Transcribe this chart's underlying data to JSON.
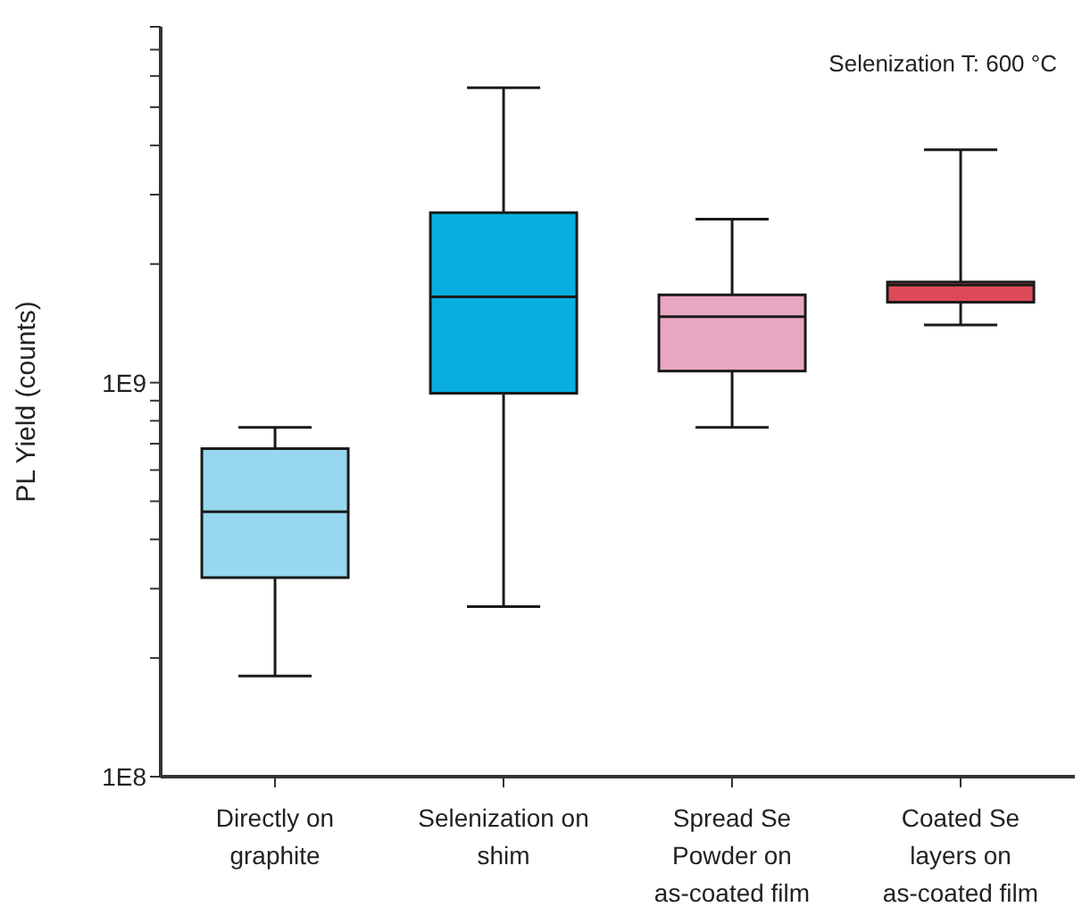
{
  "chart_data": {
    "type": "box",
    "ylabel": "PL Yield (counts)",
    "annotations": [
      "Selenization T: 600 °C"
    ],
    "categories": [
      "Directly on graphite",
      "Selenization on shim",
      "Spread Se Powder on as-coated film",
      "Coated Se layers on as-coated film"
    ],
    "colors": [
      "#97d7f0",
      "#08aee0",
      "#e9a6c2",
      "#dc4a58"
    ],
    "boxes": [
      {
        "low": 180000000,
        "q1": 320000000,
        "median": 470000000,
        "q3": 680000000,
        "high": 770000000
      },
      {
        "low": 270000000,
        "q1": 940000000,
        "median": 1650000000,
        "q3": 2700000000,
        "high": 5600000000
      },
      {
        "low": 770000000,
        "q1": 1070000000,
        "median": 1470000000,
        "q3": 1670000000,
        "high": 2600000000
      },
      {
        "low": 1400000000,
        "q1": 1600000000,
        "median": 1770000000,
        "q3": 1800000000,
        "high": 3900000000
      }
    ],
    "log": true,
    "ylim": [
      100000000,
      8000000000
    ],
    "yticks": [
      {
        "value": 100000000,
        "label": "1E8"
      },
      {
        "value": 200000000,
        "label": null
      },
      {
        "value": 300000000,
        "label": null
      },
      {
        "value": 400000000,
        "label": null
      },
      {
        "value": 500000000,
        "label": null
      },
      {
        "value": 600000000,
        "label": null
      },
      {
        "value": 700000000,
        "label": null
      },
      {
        "value": 800000000,
        "label": null
      },
      {
        "value": 900000000,
        "label": null
      },
      {
        "value": 1000000000,
        "label": "1E9"
      },
      {
        "value": 2000000000,
        "label": null
      },
      {
        "value": 3000000000,
        "label": null
      },
      {
        "value": 4000000000,
        "label": null
      },
      {
        "value": 5000000000,
        "label": null
      },
      {
        "value": 6000000000,
        "label": null
      },
      {
        "value": 7000000000,
        "label": null
      },
      {
        "value": 8000000000,
        "label": null
      }
    ],
    "grid": false
  }
}
